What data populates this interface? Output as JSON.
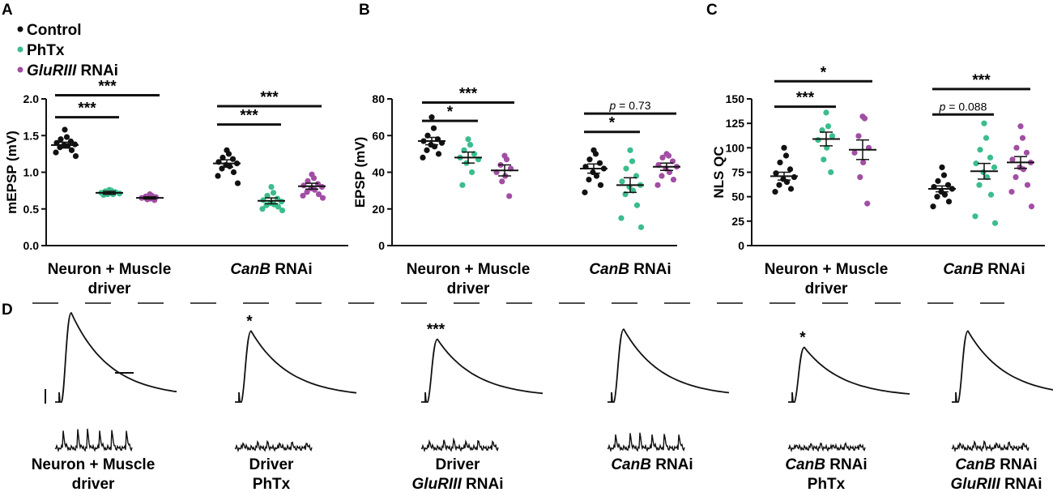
{
  "colors": {
    "control": "#111111",
    "phtx": "#3bbd8c",
    "gluriii": "#a24ea4"
  },
  "panel_letters": [
    "A",
    "B",
    "C",
    "D"
  ],
  "legend": [
    {
      "label": "Control",
      "italic": "",
      "suffix": "",
      "color_key": "control"
    },
    {
      "label": "PhTx",
      "italic": "",
      "suffix": "",
      "color_key": "phtx"
    },
    {
      "label": "",
      "italic": "GluRIII",
      "suffix": " RNAi",
      "color_key": "gluriii"
    }
  ],
  "chart_data": [
    {
      "type": "scatter",
      "title": "",
      "ylabel": "mEPSP (mV)",
      "ylim": [
        0,
        2.0
      ],
      "yticks": [
        "0.0",
        "0.5",
        "1.0",
        "1.5",
        "2.0"
      ],
      "ytick_values": [
        0,
        0.5,
        1.0,
        1.5,
        2.0
      ],
      "groups": [
        {
          "line1": "Neuron + Muscle",
          "line2": "driver",
          "italic": ""
        },
        {
          "line1": "",
          "line2": "",
          "italic": "CanB",
          "suffix": " RNAi"
        }
      ],
      "series": [
        {
          "name": "Control",
          "color_key": "control",
          "group": 0,
          "mean": 1.37,
          "sem": 0.04,
          "values": [
            1.58,
            1.48,
            1.45,
            1.42,
            1.4,
            1.38,
            1.37,
            1.36,
            1.34,
            1.3,
            1.27,
            1.22
          ]
        },
        {
          "name": "PhTx",
          "color_key": "phtx",
          "group": 0,
          "mean": 0.72,
          "sem": 0.02,
          "values": [
            0.76,
            0.75,
            0.74,
            0.73,
            0.72,
            0.71,
            0.7,
            0.7,
            0.69
          ]
        },
        {
          "name": "GluRIII RNAi",
          "color_key": "gluriii",
          "group": 0,
          "mean": 0.65,
          "sem": 0.015,
          "values": [
            0.7,
            0.68,
            0.67,
            0.66,
            0.65,
            0.64,
            0.63,
            0.62
          ]
        },
        {
          "name": "Control",
          "color_key": "control",
          "group": 1,
          "mean": 1.12,
          "sem": 0.05,
          "values": [
            1.3,
            1.25,
            1.2,
            1.18,
            1.14,
            1.12,
            1.1,
            1.08,
            1.05,
            1.0,
            0.95,
            0.85
          ]
        },
        {
          "name": "PhTx",
          "color_key": "phtx",
          "group": 1,
          "mean": 0.61,
          "sem": 0.04,
          "values": [
            0.8,
            0.72,
            0.68,
            0.64,
            0.62,
            0.6,
            0.58,
            0.56,
            0.55,
            0.53,
            0.5,
            0.48
          ]
        },
        {
          "name": "GluRIII RNAi",
          "color_key": "gluriii",
          "group": 1,
          "mean": 0.81,
          "sem": 0.04,
          "values": [
            0.97,
            0.92,
            0.88,
            0.84,
            0.82,
            0.8,
            0.78,
            0.76,
            0.73,
            0.7,
            0.68,
            0.65
          ]
        }
      ],
      "brackets": [
        {
          "group": 0,
          "from": 0,
          "to": 1,
          "level": 1.75,
          "label": "***",
          "italic": ""
        },
        {
          "group": 0,
          "from": 0,
          "to": 2,
          "level": 2.05,
          "label": "***",
          "italic": ""
        },
        {
          "group": 1,
          "from": 0,
          "to": 1,
          "level": 1.65,
          "label": "***",
          "italic": ""
        },
        {
          "group": 1,
          "from": 0,
          "to": 2,
          "level": 1.9,
          "label": "***",
          "italic": ""
        }
      ]
    },
    {
      "type": "scatter",
      "title": "",
      "ylabel": "EPSP (mV)",
      "ylim": [
        0,
        80
      ],
      "yticks": [
        "0",
        "20",
        "40",
        "60",
        "80"
      ],
      "ytick_values": [
        0,
        20,
        40,
        60,
        80
      ],
      "groups": [
        {
          "line1": "Neuron + Muscle",
          "line2": "driver",
          "italic": ""
        },
        {
          "line1": "",
          "line2": "",
          "italic": "CanB",
          "suffix": " RNAi"
        }
      ],
      "series": [
        {
          "name": "Control",
          "color_key": "control",
          "group": 0,
          "mean": 57,
          "sem": 2,
          "values": [
            70,
            64,
            60,
            58,
            57,
            56,
            55,
            54,
            52,
            50,
            48
          ]
        },
        {
          "name": "PhTx",
          "color_key": "phtx",
          "group": 0,
          "mean": 48,
          "sem": 3,
          "values": [
            58,
            55,
            52,
            50,
            48,
            47,
            45,
            40,
            33
          ]
        },
        {
          "name": "GluRIII RNAi",
          "color_key": "gluriii",
          "group": 0,
          "mean": 41,
          "sem": 3,
          "values": [
            49,
            47,
            44,
            42,
            40,
            38,
            35,
            27
          ]
        },
        {
          "name": "Control",
          "color_key": "control",
          "group": 1,
          "mean": 42,
          "sem": 2.5,
          "values": [
            52,
            50,
            47,
            45,
            43,
            42,
            40,
            38,
            36,
            33,
            29
          ]
        },
        {
          "name": "PhTx",
          "color_key": "phtx",
          "group": 1,
          "mean": 33,
          "sem": 4,
          "values": [
            52,
            46,
            42,
            38,
            35,
            33,
            32,
            30,
            28,
            22,
            15,
            10
          ]
        },
        {
          "name": "GluRIII RNAi",
          "color_key": "gluriii",
          "group": 1,
          "mean": 43,
          "sem": 2,
          "values": [
            50,
            49,
            48,
            46,
            44,
            43,
            42,
            40,
            38,
            36,
            33
          ]
        }
      ],
      "brackets": [
        {
          "group": 0,
          "from": 0,
          "to": 1,
          "level": 68,
          "label": "*",
          "italic": ""
        },
        {
          "group": 0,
          "from": 0,
          "to": 2,
          "level": 78,
          "label": "***",
          "italic": ""
        },
        {
          "group": 1,
          "from": 0,
          "to": 1,
          "level": 62,
          "label": "*",
          "italic": ""
        },
        {
          "group": 1,
          "from": 0,
          "to": 2,
          "level": 72,
          "label": " = 0.73",
          "italic": "p"
        }
      ]
    },
    {
      "type": "scatter",
      "title": "",
      "ylabel": "NLS QC",
      "ylim": [
        0,
        150
      ],
      "yticks": [
        "0",
        "25",
        "50",
        "75",
        "100",
        "125",
        "150"
      ],
      "ytick_values": [
        0,
        25,
        50,
        75,
        100,
        125,
        150
      ],
      "groups": [
        {
          "line1": "Neuron + Muscle",
          "line2": "driver",
          "italic": ""
        },
        {
          "line1": "",
          "line2": "",
          "italic": "CanB",
          "suffix": " RNAi"
        }
      ],
      "series": [
        {
          "name": "Control",
          "color_key": "control",
          "group": 0,
          "mean": 71,
          "sem": 4,
          "values": [
            100,
            92,
            85,
            78,
            74,
            70,
            68,
            65,
            62,
            58,
            55
          ]
        },
        {
          "name": "PhTx",
          "color_key": "phtx",
          "group": 0,
          "mean": 109,
          "sem": 7,
          "values": [
            136,
            122,
            118,
            112,
            108,
            100,
            88,
            75
          ]
        },
        {
          "name": "GluRIII RNAi",
          "color_key": "gluriii",
          "group": 0,
          "mean": 98,
          "sem": 10,
          "values": [
            132,
            130,
            112,
            100,
            95,
            85,
            70,
            43
          ]
        },
        {
          "name": "Control",
          "color_key": "control",
          "group": 1,
          "mean": 58,
          "sem": 3,
          "values": [
            80,
            72,
            66,
            62,
            60,
            58,
            55,
            52,
            50,
            45,
            40
          ]
        },
        {
          "name": "PhTx",
          "color_key": "phtx",
          "group": 1,
          "mean": 76,
          "sem": 8,
          "values": [
            125,
            110,
            98,
            90,
            84,
            80,
            75,
            70,
            62,
            52,
            30,
            23
          ]
        },
        {
          "name": "GluRIII RNAi",
          "color_key": "gluriii",
          "group": 1,
          "mean": 85,
          "sem": 6,
          "values": [
            122,
            110,
            100,
            95,
            88,
            85,
            80,
            78,
            70,
            62,
            55,
            40
          ]
        }
      ],
      "brackets": [
        {
          "group": 0,
          "from": 0,
          "to": 1,
          "level": 142,
          "label": "***",
          "italic": ""
        },
        {
          "group": 0,
          "from": 0,
          "to": 2,
          "level": 168,
          "label": "*",
          "italic": ""
        },
        {
          "group": 1,
          "from": 0,
          "to": 1,
          "level": 134,
          "label": " = 0.088",
          "italic": "p"
        },
        {
          "group": 1,
          "from": 0,
          "to": 2,
          "level": 160,
          "label": "***",
          "italic": ""
        }
      ]
    }
  ],
  "traces": {
    "scale_bar_labels": [
      "",
      ""
    ],
    "items": [
      {
        "line1": "Neuron + Muscle",
        "line2": "driver",
        "line1_italic": "",
        "line1_suffix": "",
        "line2_italic": "",
        "line2_suffix": "",
        "star": "",
        "amp": 1.0,
        "mini_amp": 1.0
      },
      {
        "line1": "Driver",
        "line2": "PhTx",
        "line1_italic": "",
        "line1_suffix": "",
        "line2_italic": "",
        "line2_suffix": "",
        "star": "*",
        "amp": 0.8,
        "mini_amp": 0.35
      },
      {
        "line1": "Driver",
        "line2": "",
        "line1_italic": "",
        "line1_suffix": "",
        "line2_italic": "GluRIII",
        "line2_suffix": " RNAi",
        "star": "***",
        "amp": 0.71,
        "mini_amp": 0.45
      },
      {
        "line1": "",
        "line2": "",
        "line1_italic": "CanB",
        "line1_suffix": " RNAi",
        "line2_italic": "",
        "line2_suffix": "",
        "star": "",
        "amp": 0.82,
        "mini_amp": 0.8
      },
      {
        "line1": "",
        "line2": "PhTx",
        "line1_italic": "CanB",
        "line1_suffix": " RNAi",
        "line2_italic": "",
        "line2_suffix": "",
        "star": "*",
        "amp": 0.62,
        "mini_amp": 0.25
      },
      {
        "line1": "",
        "line2": "",
        "line1_italic": "CanB",
        "line1_suffix": " RNAi",
        "line2_italic": "GluRIII",
        "line2_suffix": " RNAi",
        "star": "",
        "amp": 0.8,
        "mini_amp": 0.35
      }
    ]
  }
}
